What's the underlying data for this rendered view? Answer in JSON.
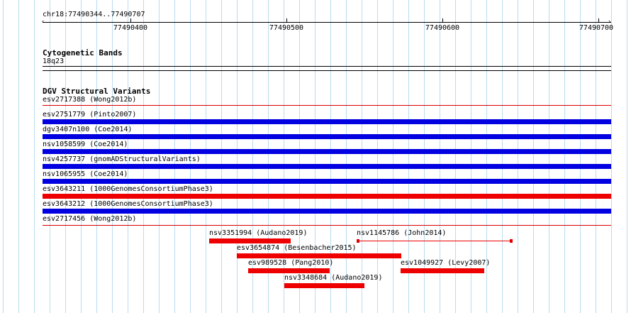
{
  "ruler": {
    "location": "chr18:77490344..77490707",
    "ticks": [
      "77490400",
      "77490500",
      "77490600",
      "77490700"
    ]
  },
  "cyto": {
    "title": "Cytogenetic Bands",
    "band": "18q23"
  },
  "dgv": {
    "title": "DGV Structural Variants",
    "full_tracks": [
      {
        "label": "esv2717388 (Wong2012b)",
        "color": "#d60000"
      },
      {
        "label": "esv2751779 (Pinto2007)",
        "color": "#0000e0"
      },
      {
        "label": "dgv3407n100 (Coe2014)",
        "color": "#0000e0"
      },
      {
        "label": "nsv1058599 (Coe2014)",
        "color": "#0000e0"
      },
      {
        "label": "nsv4257737 (gnomADStructuralVariants)",
        "color": "#0000e0"
      },
      {
        "label": "nsv1065955 (Coe2014)",
        "color": "#0000e0"
      },
      {
        "label": "esv3643211 (1000GenomesConsortiumPhase3)",
        "color": "#ee0000"
      },
      {
        "label": "esv3643212 (1000GenomesConsortiumPhase3)",
        "color": "#0000e0"
      },
      {
        "label": "esv2717456 (Wong2012b)",
        "color": "#d60000"
      }
    ],
    "partial_tracks": [
      {
        "label": "nsv3351994 (Audano2019)",
        "color": "#ee0000"
      },
      {
        "label": "nsv1145786 (John2014)",
        "color": "#ee0000"
      },
      {
        "label": "esv3654874 (Besenbacher2015)",
        "color": "#ee0000"
      },
      {
        "label": "esv989528 (Pang2010)",
        "color": "#ee0000"
      },
      {
        "label": "esv1049927 (Levy2007)",
        "color": "#ee0000"
      },
      {
        "label": "nsv3348684 (Audano2019)",
        "color": "#ee0000"
      }
    ]
  },
  "colors": {
    "grid_line": "#b9dcf0",
    "loss": "#ee0000",
    "gain": "#0000e0"
  }
}
